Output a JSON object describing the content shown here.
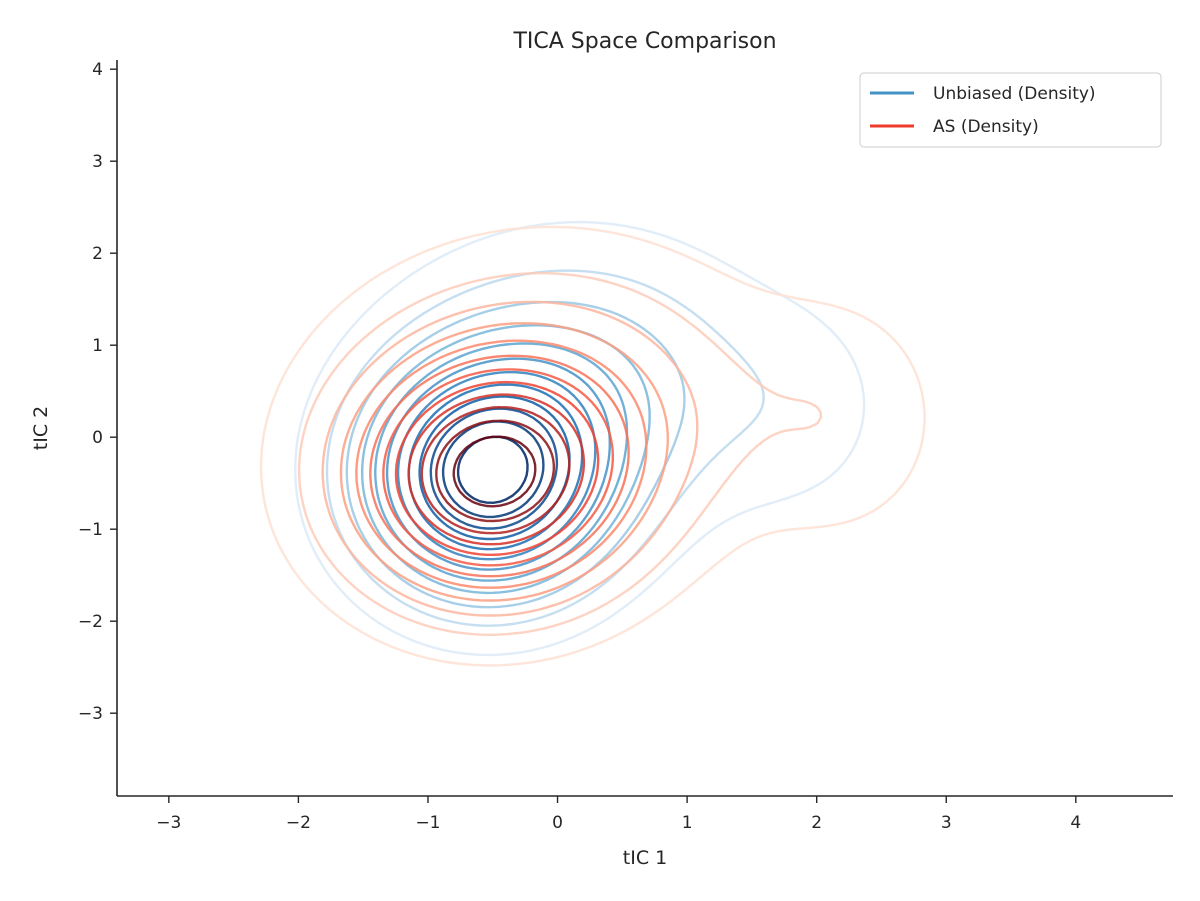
{
  "chart_data": {
    "type": "contour",
    "title": "TICA Space Comparison",
    "xlabel": "tIC 1",
    "ylabel": "tIC 2",
    "xlim": [
      -3.4,
      4.75
    ],
    "ylim": [
      -3.9,
      4.1
    ],
    "xticks": [
      -3,
      -2,
      -1,
      0,
      1,
      2,
      3,
      4
    ],
    "yticks": [
      -3,
      -2,
      -1,
      0,
      1,
      2,
      3,
      4
    ],
    "xtick_labels": [
      "−3",
      "−2",
      "−1",
      "0",
      "1",
      "2",
      "3",
      "4"
    ],
    "ytick_labels": [
      "−3",
      "−2",
      "−1",
      "0",
      "1",
      "2",
      "3",
      "4"
    ],
    "grid": false,
    "legend_position": "top-right",
    "series": [
      {
        "name": "Unbiased (Density)",
        "legend_color": "#4292c6",
        "colormap": "Blues",
        "levels": 12,
        "components": [
          {
            "weight": 1.0,
            "center": [
              -0.55,
              -0.45
            ],
            "sd": [
              0.62,
              0.82
            ]
          },
          {
            "weight": 0.3,
            "center": [
              0.2,
              0.6
            ],
            "sd": [
              0.9,
              1.0
            ]
          },
          {
            "weight": 0.08,
            "center": [
              1.9,
              0.3
            ],
            "sd": [
              0.5,
              0.8
            ]
          }
        ]
      },
      {
        "name": "AS (Density)",
        "legend_color": "#ef3b2c",
        "colormap": "Reds",
        "levels": 12,
        "components": [
          {
            "weight": 1.0,
            "center": [
              -0.55,
              -0.5
            ],
            "sd": [
              0.72,
              0.85
            ]
          },
          {
            "weight": 0.35,
            "center": [
              0.0,
              0.4
            ],
            "sd": [
              1.0,
              1.05
            ]
          },
          {
            "weight": 0.13,
            "center": [
              2.2,
              0.2
            ],
            "sd": [
              0.55,
              0.9
            ]
          }
        ]
      }
    ]
  }
}
